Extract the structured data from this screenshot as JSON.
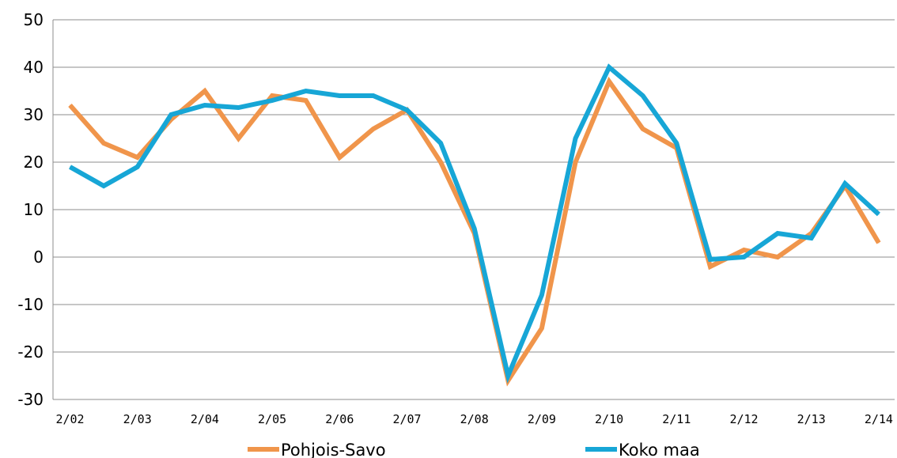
{
  "chart_data": {
    "type": "line",
    "title": "",
    "xlabel": "",
    "ylabel": "",
    "ylim": [
      -30,
      50
    ],
    "yticks": [
      50,
      40,
      30,
      20,
      10,
      0,
      -10,
      -20,
      -30
    ],
    "grid": true,
    "legend_position": "bottom",
    "x_tick_labels": [
      "2/02",
      "2/03",
      "2/04",
      "2/05",
      "2/06",
      "2/07",
      "2/08",
      "2/09",
      "2/10",
      "2/11",
      "2/12",
      "2/13",
      "2/14"
    ],
    "x": [
      "2/02",
      "",
      "2/03",
      "",
      "2/04",
      "",
      "2/05",
      "",
      "2/06",
      "",
      "2/07",
      "",
      "2/08",
      "",
      "2/09",
      "",
      "2/10",
      "",
      "2/11",
      "",
      "2/12",
      "",
      "2/13",
      "",
      "2/14"
    ],
    "series": [
      {
        "name": "Pohjois-Savo",
        "color": "#F0954B",
        "values": [
          32,
          24,
          21,
          29,
          35,
          25,
          34,
          33,
          21,
          27,
          31,
          20,
          5,
          -26,
          -15,
          20,
          37,
          27,
          23,
          -2,
          1.5,
          0,
          5,
          15,
          3
        ]
      },
      {
        "name": "Koko maa",
        "color": "#17A6D6",
        "values": [
          19,
          15,
          19,
          30,
          32,
          31.5,
          33,
          35,
          34,
          34,
          31,
          24,
          6,
          -25,
          -8,
          25,
          40,
          34,
          24,
          -0.5,
          0,
          5,
          4,
          15.5,
          9
        ]
      }
    ]
  }
}
